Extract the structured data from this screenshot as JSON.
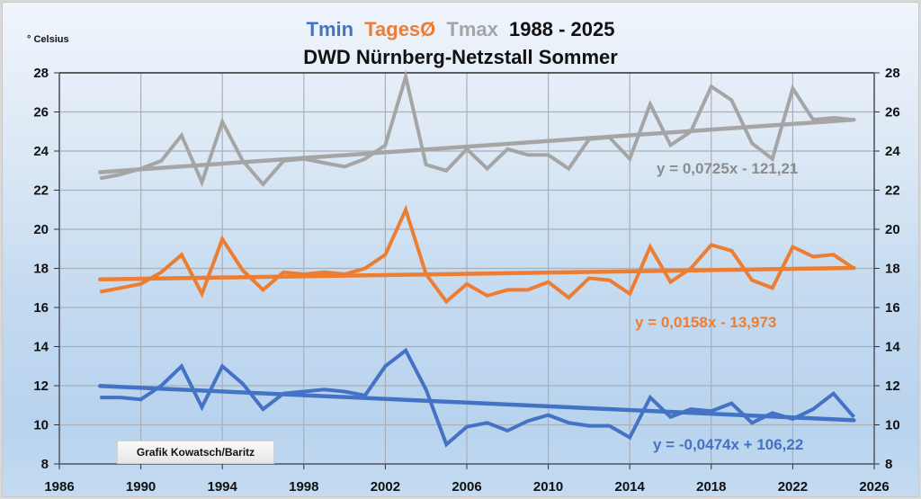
{
  "chart_data": {
    "type": "line",
    "title_parts": [
      {
        "text": "Tmin",
        "color": "#4472c4"
      },
      {
        "text": "TagesØ",
        "color": "#ed7d31"
      },
      {
        "text": "Tmax",
        "color": "#a5a5a5"
      },
      {
        "text": "1988 - 2025",
        "color": "#111111"
      }
    ],
    "subtitle": "DWD Nürnberg-Netzstall Sommer",
    "ylabel": "° Celsius",
    "xlabel": "",
    "xlim": [
      1986,
      2026
    ],
    "ylim": [
      8,
      28
    ],
    "x_ticks": [
      1986,
      1990,
      1994,
      1998,
      2002,
      2006,
      2010,
      2014,
      2018,
      2022,
      2026
    ],
    "y_ticks": [
      8,
      10,
      12,
      14,
      16,
      18,
      20,
      22,
      24,
      26,
      28
    ],
    "grid": true,
    "secondary_y_axis": true,
    "x": [
      1988,
      1989,
      1990,
      1991,
      1992,
      1993,
      1994,
      1995,
      1996,
      1997,
      1998,
      1999,
      2000,
      2001,
      2002,
      2003,
      2004,
      2005,
      2006,
      2007,
      2008,
      2009,
      2010,
      2011,
      2012,
      2013,
      2014,
      2015,
      2016,
      2017,
      2018,
      2019,
      2020,
      2021,
      2022,
      2023,
      2024,
      2025
    ],
    "series": [
      {
        "name": "Tmax",
        "color": "#a5a5a5",
        "values": [
          22.6,
          22.8,
          23.1,
          23.5,
          24.8,
          22.4,
          25.5,
          23.5,
          22.3,
          23.5,
          23.6,
          23.4,
          23.2,
          23.6,
          24.3,
          27.8,
          23.3,
          23.0,
          24.1,
          23.1,
          24.1,
          23.8,
          23.8,
          23.1,
          24.6,
          24.7,
          23.6,
          26.4,
          24.3,
          25.0,
          27.3,
          26.6,
          24.4,
          23.6,
          27.2,
          25.6,
          25.7,
          25.6
        ],
        "trend": {
          "slope": 0.0725,
          "intercept": -121.21,
          "label": "y = 0,0725x - 121,21"
        }
      },
      {
        "name": "TagesØ",
        "color": "#ed7d31",
        "values": [
          16.8,
          17.0,
          17.2,
          17.8,
          18.7,
          16.7,
          19.5,
          17.9,
          16.9,
          17.8,
          17.7,
          17.8,
          17.7,
          18.0,
          18.7,
          21.0,
          17.7,
          16.3,
          17.2,
          16.6,
          16.9,
          16.9,
          17.3,
          16.5,
          17.5,
          17.4,
          16.7,
          19.1,
          17.3,
          18.0,
          19.2,
          18.9,
          17.4,
          17.0,
          19.1,
          18.6,
          18.7,
          18.0
        ],
        "trend": {
          "slope": 0.0158,
          "intercept": -13.973,
          "label": "y = 0,0158x - 13,973"
        }
      },
      {
        "name": "Tmin",
        "color": "#4472c4",
        "values": [
          11.4,
          11.4,
          11.3,
          12.0,
          13.0,
          10.9,
          13.0,
          12.1,
          10.8,
          11.6,
          11.7,
          11.8,
          11.7,
          11.5,
          13.0,
          13.8,
          11.8,
          9.0,
          9.9,
          10.1,
          9.7,
          10.2,
          10.5,
          10.1,
          9.95,
          9.95,
          9.35,
          11.4,
          10.4,
          10.8,
          10.7,
          11.1,
          10.1,
          10.6,
          10.3,
          10.8,
          11.6,
          10.4
        ],
        "trend": {
          "slope": -0.0474,
          "intercept": 106.22,
          "label": "y = -0,0474x + 106,22"
        }
      }
    ],
    "annotations": [
      "Grafik Kowatsch/Baritz"
    ]
  }
}
